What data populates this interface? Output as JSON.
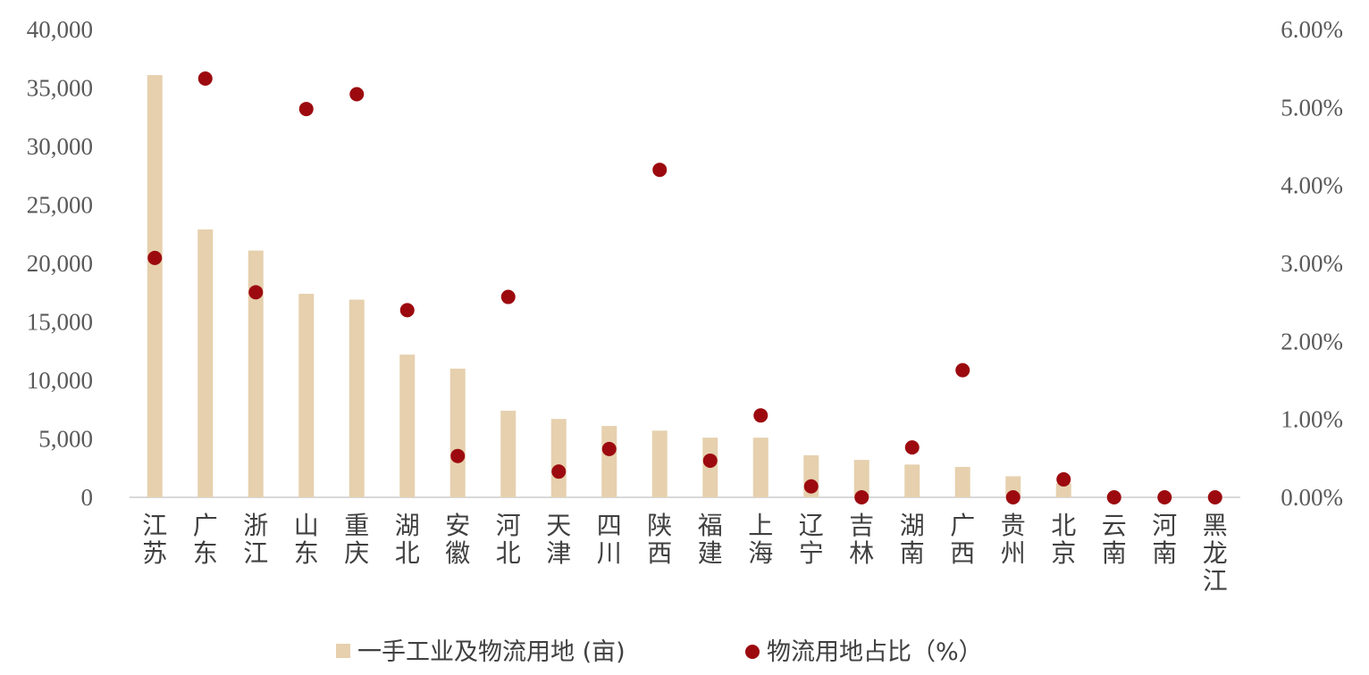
{
  "chart_data": {
    "type": "bar+scatter",
    "categories": [
      "江苏",
      "广东",
      "浙江",
      "山东",
      "重庆",
      "湖北",
      "安徽",
      "河北",
      "天津",
      "四川",
      "陕西",
      "福建",
      "上海",
      "辽宁",
      "吉林",
      "湖南",
      "广西",
      "贵州",
      "北京",
      "云南",
      "河南",
      "黑龙江"
    ],
    "series": [
      {
        "name": "一手工业及物流用地 (亩)",
        "kind": "bar",
        "axis": "left",
        "color": "#E6D0AE",
        "values": [
          36100,
          22900,
          21100,
          17400,
          16900,
          12200,
          11000,
          7400,
          6700,
          6100,
          5700,
          5100,
          5100,
          3600,
          3200,
          2800,
          2600,
          1800,
          1200,
          0,
          0,
          0
        ]
      },
      {
        "name": "物流用地占比（%）",
        "kind": "scatter",
        "axis": "right",
        "color": "#9C0A0F",
        "values": [
          3.07,
          5.37,
          2.63,
          4.98,
          5.17,
          2.4,
          0.53,
          2.57,
          0.33,
          0.62,
          4.2,
          0.47,
          1.05,
          0.14,
          0.0,
          0.64,
          1.63,
          0.0,
          0.23,
          0.0,
          0.0,
          0.0
        ]
      }
    ],
    "y_left": {
      "ylim": [
        0,
        40000
      ],
      "ticks": [
        0,
        5000,
        10000,
        15000,
        20000,
        25000,
        30000,
        35000,
        40000
      ],
      "tick_labels": [
        "0",
        "5,000",
        "10,000",
        "15,000",
        "20,000",
        "25,000",
        "30,000",
        "35,000",
        "40,000"
      ]
    },
    "y_right": {
      "ylim": [
        0,
        6
      ],
      "ticks": [
        0,
        1,
        2,
        3,
        4,
        5,
        6
      ],
      "tick_labels": [
        "0.00%",
        "1.00%",
        "2.00%",
        "3.00%",
        "4.00%",
        "5.00%",
        "6.00%"
      ]
    },
    "grid": false,
    "legend_position": "bottom"
  }
}
